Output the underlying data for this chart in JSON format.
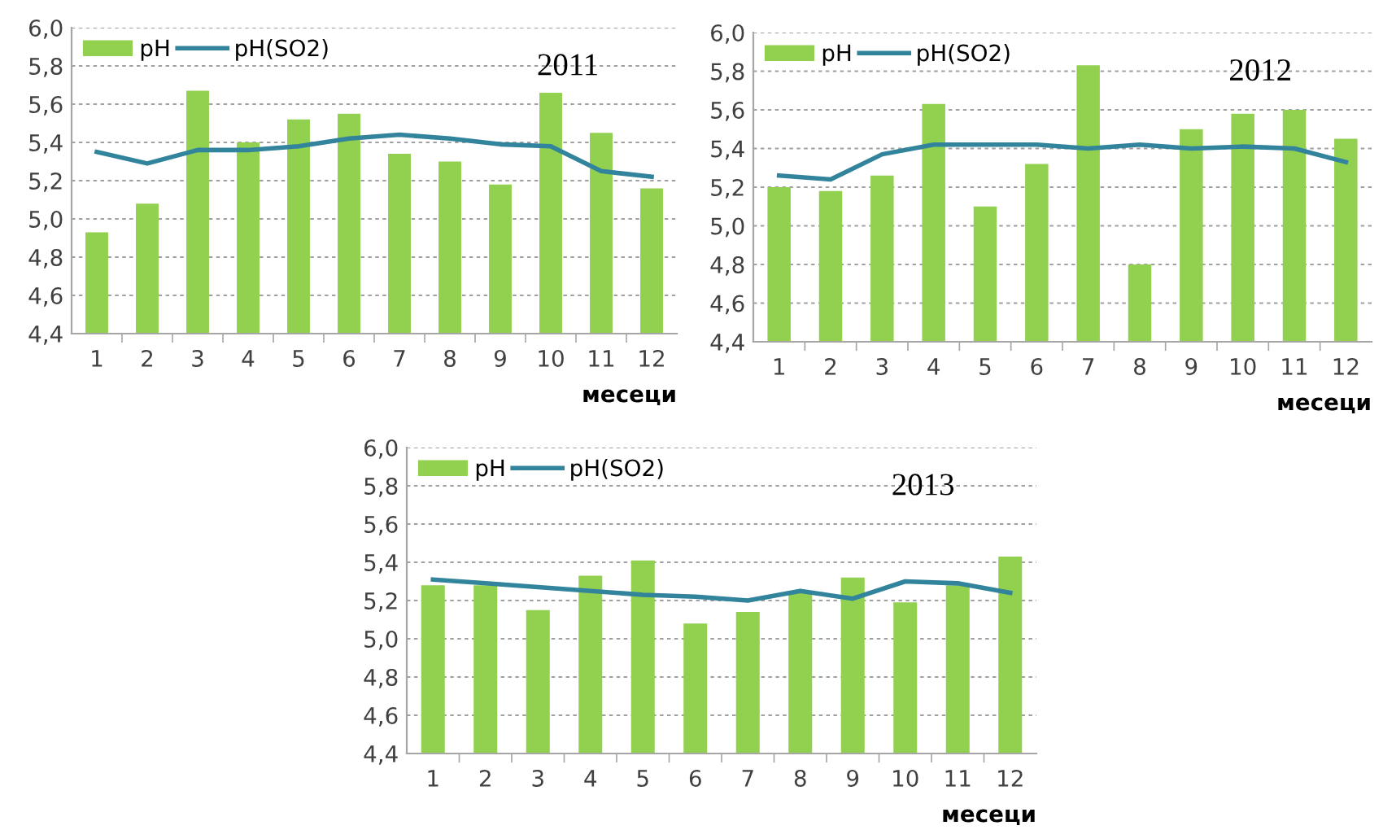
{
  "chart_data": [
    {
      "type": "bar",
      "categories": [
        "1",
        "2",
        "3",
        "4",
        "5",
        "6",
        "7",
        "8",
        "9",
        "10",
        "11",
        "12"
      ],
      "xlabel": "месеци",
      "annotations": [
        "2011"
      ],
      "ylim": [
        4.4,
        6.0
      ],
      "yticks": [
        {
          "value": 4.4,
          "label": "4,4"
        },
        {
          "value": 4.6,
          "label": "4,6"
        },
        {
          "value": 4.8,
          "label": "4,8"
        },
        {
          "value": 5.0,
          "label": "5,0"
        },
        {
          "value": 5.2,
          "label": "5,2"
        },
        {
          "value": 5.4,
          "label": "5,4"
        },
        {
          "value": 5.6,
          "label": "5,6"
        },
        {
          "value": 5.8,
          "label": "5,8"
        },
        {
          "value": 6.0,
          "label": "6,0"
        }
      ],
      "grid": "y",
      "legend": "top left",
      "series": [
        {
          "name": "pH",
          "color": "#92d050",
          "values": [
            4.93,
            5.08,
            5.67,
            5.4,
            5.52,
            5.55,
            5.34,
            5.3,
            5.18,
            5.66,
            5.45,
            5.16
          ]
        },
        {
          "name": "pH(SO2)",
          "type": "line",
          "color": "#31849b",
          "values": [
            5.35,
            5.29,
            5.36,
            5.36,
            5.38,
            5.42,
            5.44,
            5.42,
            5.39,
            5.38,
            5.25,
            5.22
          ]
        }
      ]
    },
    {
      "type": "bar",
      "categories": [
        "1",
        "2",
        "3",
        "4",
        "5",
        "6",
        "7",
        "8",
        "9",
        "10",
        "11",
        "12"
      ],
      "xlabel": "месеци",
      "annotations": [
        "2012"
      ],
      "ylim": [
        4.4,
        6.0
      ],
      "yticks": [
        {
          "value": 4.4,
          "label": "4,4"
        },
        {
          "value": 4.6,
          "label": "4,6"
        },
        {
          "value": 4.8,
          "label": "4,8"
        },
        {
          "value": 5.0,
          "label": "5,0"
        },
        {
          "value": 5.2,
          "label": "5,2"
        },
        {
          "value": 5.4,
          "label": "5,4"
        },
        {
          "value": 5.6,
          "label": "5,6"
        },
        {
          "value": 5.8,
          "label": "5,8"
        },
        {
          "value": 6.0,
          "label": "6,0"
        }
      ],
      "grid": "y",
      "legend": "top left",
      "series": [
        {
          "name": "pH",
          "color": "#92d050",
          "values": [
            5.2,
            5.18,
            5.26,
            5.63,
            5.1,
            5.32,
            5.83,
            4.8,
            5.5,
            5.58,
            5.6,
            5.45
          ]
        },
        {
          "name": "pH(SO2)",
          "type": "line",
          "color": "#31849b",
          "values": [
            5.26,
            5.24,
            5.37,
            5.42,
            5.42,
            5.42,
            5.4,
            5.42,
            5.4,
            5.41,
            5.4,
            5.33
          ]
        }
      ]
    },
    {
      "type": "bar",
      "categories": [
        "1",
        "2",
        "3",
        "4",
        "5",
        "6",
        "7",
        "8",
        "9",
        "10",
        "11",
        "12"
      ],
      "xlabel": "месеци",
      "annotations": [
        "2013"
      ],
      "ylim": [
        4.4,
        6.0
      ],
      "yticks": [
        {
          "value": 4.4,
          "label": "4,4"
        },
        {
          "value": 4.6,
          "label": "4,6"
        },
        {
          "value": 4.8,
          "label": "4,8"
        },
        {
          "value": 5.0,
          "label": "5,0"
        },
        {
          "value": 5.2,
          "label": "5,2"
        },
        {
          "value": 5.4,
          "label": "5,4"
        },
        {
          "value": 5.6,
          "label": "5,6"
        },
        {
          "value": 5.8,
          "label": "5,8"
        },
        {
          "value": 6.0,
          "label": "6,0"
        }
      ],
      "grid": "y",
      "legend": "top left",
      "series": [
        {
          "name": "pH",
          "color": "#92d050",
          "values": [
            5.28,
            5.28,
            5.15,
            5.33,
            5.41,
            5.08,
            5.14,
            5.24,
            5.32,
            5.19,
            5.28,
            5.43
          ]
        },
        {
          "name": "pH(SO2)",
          "type": "line",
          "color": "#31849b",
          "values": [
            5.31,
            5.29,
            5.27,
            5.25,
            5.23,
            5.22,
            5.2,
            5.25,
            5.21,
            5.3,
            5.29,
            5.24
          ]
        }
      ]
    }
  ]
}
